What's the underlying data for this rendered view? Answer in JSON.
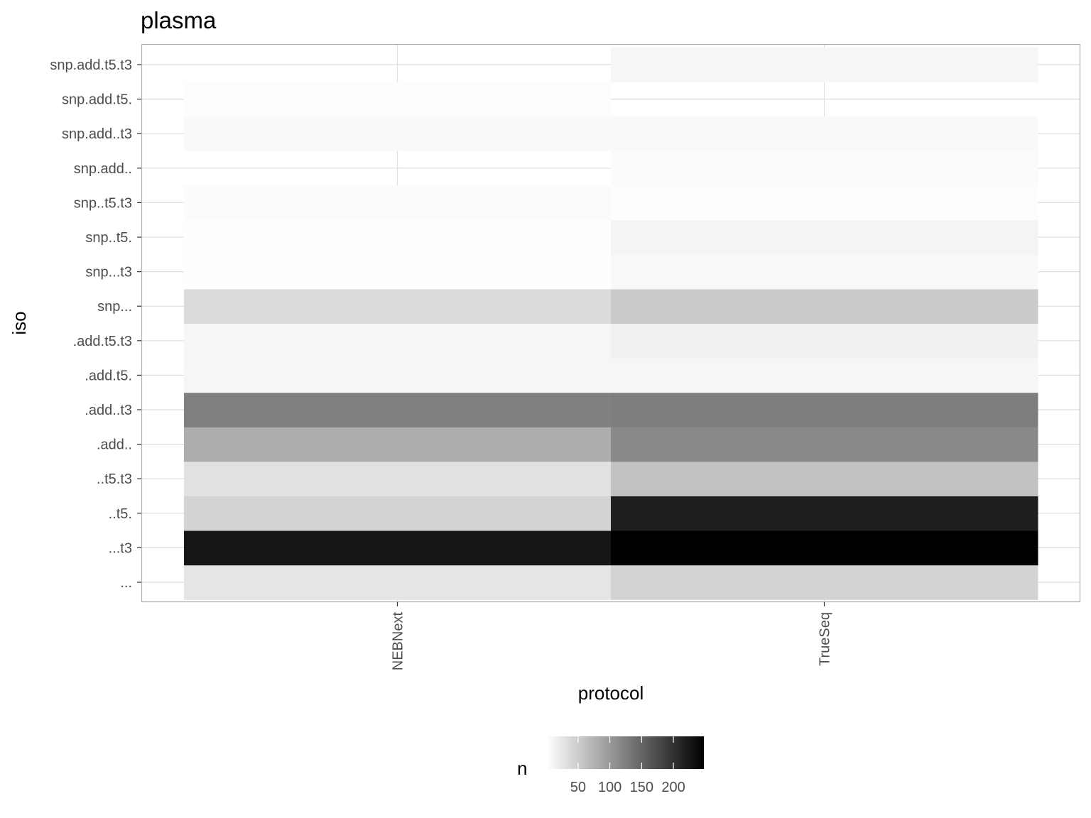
{
  "chart_data": {
    "type": "heatmap",
    "title": "plasma",
    "xlabel": "protocol",
    "ylabel": "iso",
    "x_categories": [
      "NEBNext",
      "TrueSeq"
    ],
    "y_categories": [
      "...",
      "...t3",
      "..t5.",
      "..t5.t3",
      ".add..",
      ".add..t3",
      ".add.t5.",
      ".add.t5.t3",
      "snp...",
      "snp...t3",
      "snp..t5.",
      "snp..t5.t3",
      "snp.add..",
      "snp.add..t3",
      "snp.add.t5.",
      "snp.add.t5.t3"
    ],
    "cells": [
      {
        "x": "NEBNext",
        "y": "...",
        "n": 26
      },
      {
        "x": "NEBNext",
        "y": "...t3",
        "n": 227
      },
      {
        "x": "NEBNext",
        "y": "..t5.",
        "n": 44
      },
      {
        "x": "NEBNext",
        "y": "..t5.t3",
        "n": 30
      },
      {
        "x": "NEBNext",
        "y": ".add..",
        "n": 80
      },
      {
        "x": "NEBNext",
        "y": ".add..t3",
        "n": 124
      },
      {
        "x": "NEBNext",
        "y": ".add.t5.",
        "n": 10
      },
      {
        "x": "NEBNext",
        "y": ".add.t5.t3",
        "n": 10
      },
      {
        "x": "NEBNext",
        "y": "snp...",
        "n": 36
      },
      {
        "x": "NEBNext",
        "y": "snp...t3",
        "n": 2
      },
      {
        "x": "NEBNext",
        "y": "snp..t5.",
        "n": 2
      },
      {
        "x": "NEBNext",
        "y": "snp..t5.t3",
        "n": 5
      },
      {
        "x": "NEBNext",
        "y": "snp.add.t5.",
        "n": 3
      },
      {
        "x": "NEBNext",
        "y": "snp.add..t3",
        "n": 7
      },
      {
        "x": "TrueSeq",
        "y": "...",
        "n": 44
      },
      {
        "x": "TrueSeq",
        "y": "...t3",
        "n": 248
      },
      {
        "x": "TrueSeq",
        "y": "..t5.",
        "n": 218
      },
      {
        "x": "TrueSeq",
        "y": "..t5.t3",
        "n": 60
      },
      {
        "x": "TrueSeq",
        "y": ".add..",
        "n": 115
      },
      {
        "x": "TrueSeq",
        "y": ".add..t3",
        "n": 126
      },
      {
        "x": "TrueSeq",
        "y": ".add.t5.",
        "n": 10
      },
      {
        "x": "TrueSeq",
        "y": ".add.t5.t3",
        "n": 15
      },
      {
        "x": "TrueSeq",
        "y": "snp...",
        "n": 52
      },
      {
        "x": "TrueSeq",
        "y": "snp...t3",
        "n": 7
      },
      {
        "x": "TrueSeq",
        "y": "snp..t5.",
        "n": 12
      },
      {
        "x": "TrueSeq",
        "y": "snp..t5.t3",
        "n": 3
      },
      {
        "x": "TrueSeq",
        "y": "snp.add..",
        "n": 5
      },
      {
        "x": "TrueSeq",
        "y": "snp.add..t3",
        "n": 7
      },
      {
        "x": "TrueSeq",
        "y": "snp.add.t5.t3",
        "n": 10
      }
    ],
    "color_scale": {
      "name": "n",
      "low": "#ffffff",
      "high": "#000000",
      "limits": [
        1,
        248
      ],
      "breaks": [
        50,
        100,
        150,
        200
      ]
    },
    "legend_position": "bottom",
    "grid": true
  }
}
